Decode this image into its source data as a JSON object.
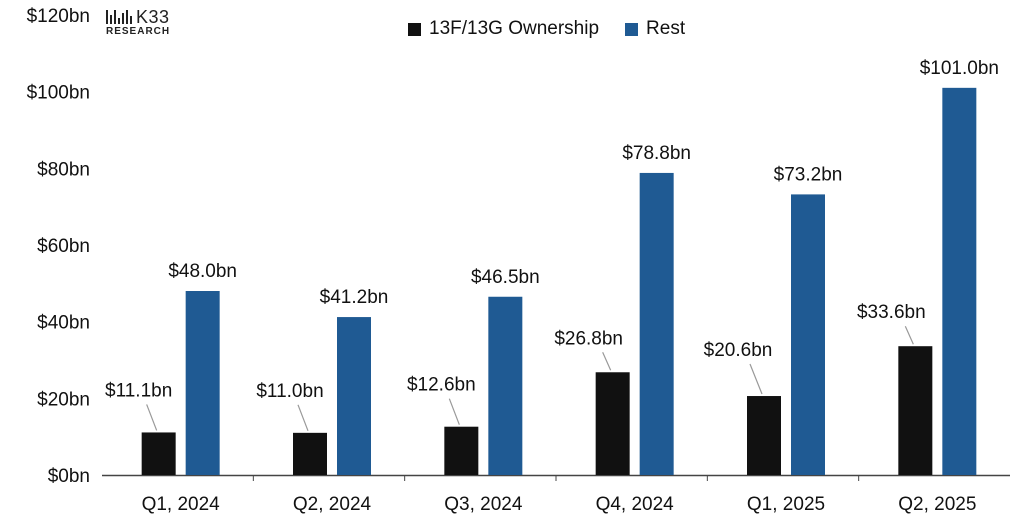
{
  "brand": {
    "name": "K33",
    "sub": "RESEARCH"
  },
  "colors": {
    "ownership": "#111111",
    "rest": "#1f5a93",
    "axis": "#444444",
    "text": "#111111"
  },
  "chart_data": {
    "type": "bar",
    "categories": [
      "Q1, 2024",
      "Q2, 2024",
      "Q3, 2024",
      "Q4, 2024",
      "Q1, 2025",
      "Q2, 2025"
    ],
    "series": [
      {
        "name": "13F/13G Ownership",
        "values": [
          11.1,
          11.0,
          12.6,
          26.8,
          20.6,
          33.6
        ],
        "labels": [
          "$11.1bn",
          "$11.0bn",
          "$12.6bn",
          "$26.8bn",
          "$20.6bn",
          "$33.6bn"
        ]
      },
      {
        "name": "Rest",
        "values": [
          48.0,
          41.2,
          46.5,
          78.8,
          73.2,
          101.0
        ],
        "labels": [
          "$48.0bn",
          "$41.2bn",
          "$46.5bn",
          "$78.8bn",
          "$73.2bn",
          "$101.0bn"
        ]
      }
    ],
    "yticks": [
      "$0bn",
      "$20bn",
      "$40bn",
      "$60bn",
      "$80bn",
      "$100bn",
      "$120bn"
    ],
    "ylim": [
      0,
      120
    ],
    "legend": "top-center",
    "grid": false
  }
}
